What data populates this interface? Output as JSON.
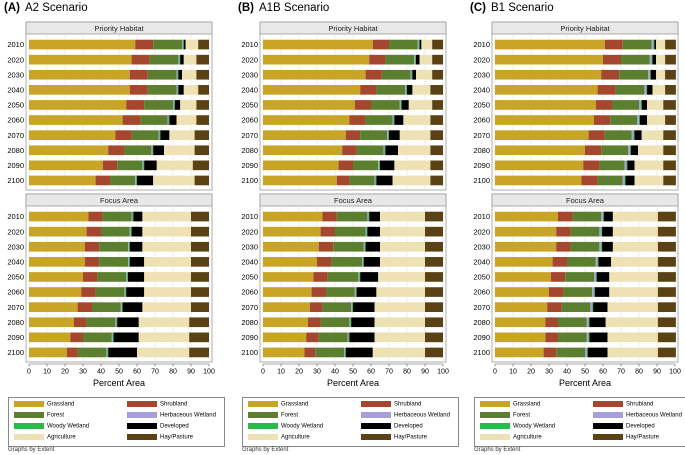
{
  "panels": [
    {
      "label": "(A)",
      "name": "A2 Scenario"
    },
    {
      "label": "(B)",
      "name": "A1B Scenario"
    },
    {
      "label": "(C)",
      "name": "B1 Scenario"
    }
  ],
  "subplots": [
    "Priority Habitat",
    "Focus Area"
  ],
  "xlabel": "Percent Area",
  "footnote": "Graphs by Extent",
  "colors": {
    "Grassland": "#c8a527",
    "Shrubland": "#a4472e",
    "Forest": "#5b7f2f",
    "Herbaceous Wetland": "#a99fd8",
    "Woody Wetland": "#2eb84a",
    "Developed": "#000000",
    "Agriculture": "#eee1b4",
    "Hay/Pasture": "#5a4214"
  },
  "legend": [
    {
      "key": "Grassland",
      "label": "Grassland"
    },
    {
      "key": "Shrubland",
      "label": "Shrubland"
    },
    {
      "key": "Forest",
      "label": "Forest"
    },
    {
      "key": "Herbaceous Wetland",
      "label": "Herbaceous Wetland"
    },
    {
      "key": "Woody Wetland",
      "label": "Woody Wetland"
    },
    {
      "key": "Developed",
      "label": "Developed"
    },
    {
      "key": "Agriculture",
      "label": "Agriculture"
    },
    {
      "key": "Hay/Pasture",
      "label": "Hay/Pasture"
    }
  ],
  "chart_data": [
    {
      "type": "bar",
      "orientation": "horizontal",
      "stacked": true,
      "title": "A2 Scenario",
      "xlabel": "Percent Area",
      "xlim": [
        0,
        100
      ],
      "xticks": [
        0,
        10,
        20,
        30,
        40,
        50,
        60,
        70,
        80,
        90,
        100
      ],
      "categories": [
        "2010",
        "2020",
        "2030",
        "2040",
        "2050",
        "2060",
        "2070",
        "2080",
        "2090",
        "2100"
      ],
      "series_order": [
        "Grassland",
        "Shrubland",
        "Forest",
        "Herbaceous Wetland",
        "Woody Wetland",
        "Developed",
        "Agriculture",
        "Hay/Pasture"
      ],
      "subplots": [
        {
          "title": "Priority Habitat",
          "series": [
            {
              "name": "Grassland",
              "values": [
                59,
                57,
                56,
                56,
                54,
                52,
                48,
                44,
                41,
                37
              ]
            },
            {
              "name": "Shrubland",
              "values": [
                10,
                10,
                10,
                10,
                10,
                10,
                9,
                9,
                8,
                8
              ]
            },
            {
              "name": "Forest",
              "values": [
                16,
                16,
                16,
                16,
                16,
                15,
                15,
                15,
                14,
                14
              ]
            },
            {
              "name": "Herbaceous Wetland",
              "values": [
                0.5,
                0.5,
                0.5,
                0.5,
                0.5,
                0.5,
                0.5,
                0.5,
                0.5,
                0.5
              ]
            },
            {
              "name": "Woody Wetland",
              "values": [
                0.5,
                0.5,
                0.5,
                0.5,
                0.5,
                0.5,
                0.5,
                0.5,
                0.5,
                0.5
              ]
            },
            {
              "name": "Developed",
              "values": [
                1,
                2,
                2,
                3,
                3,
                4,
                5,
                6,
                7,
                9
              ]
            },
            {
              "name": "Agriculture",
              "values": [
                7,
                7,
                8,
                8,
                9,
                11,
                14,
                17,
                20,
                23
              ]
            },
            {
              "name": "Hay/Pasture",
              "values": [
                6,
                7,
                7,
                6,
                7,
                7,
                8,
                8,
                9,
                8
              ]
            }
          ]
        },
        {
          "title": "Focus Area",
          "series": [
            {
              "name": "Grassland",
              "values": [
                33,
                32,
                31,
                31,
                30,
                29,
                27,
                25,
                23,
                21
              ]
            },
            {
              "name": "Shrubland",
              "values": [
                8,
                8,
                8,
                8,
                8,
                8,
                8,
                7,
                7,
                6
              ]
            },
            {
              "name": "Forest",
              "values": [
                16,
                16,
                16,
                16,
                16,
                16,
                16,
                16,
                16,
                16
              ]
            },
            {
              "name": "Herbaceous Wetland",
              "values": [
                0.5,
                0.5,
                0.5,
                0.5,
                0.5,
                0.5,
                0.5,
                0.5,
                0.5,
                0.5
              ]
            },
            {
              "name": "Woody Wetland",
              "values": [
                0.5,
                0.5,
                0.5,
                0.5,
                0.5,
                0.5,
                0.5,
                0.5,
                0.5,
                0.5
              ]
            },
            {
              "name": "Developed",
              "values": [
                5,
                6,
                7,
                8,
                9,
                10,
                11,
                12,
                14,
                16
              ]
            },
            {
              "name": "Agriculture",
              "values": [
                27,
                27,
                27,
                26,
                26,
                26,
                27,
                28,
                28,
                29
              ]
            },
            {
              "name": "Hay/Pasture",
              "values": [
                10,
                10,
                10,
                10,
                10,
                10,
                10,
                11,
                11,
                11
              ]
            }
          ]
        }
      ]
    },
    {
      "type": "bar",
      "orientation": "horizontal",
      "stacked": true,
      "title": "A1B Scenario",
      "xlabel": "Percent Area",
      "xlim": [
        0,
        100
      ],
      "xticks": [
        0,
        10,
        20,
        30,
        40,
        50,
        60,
        70,
        80,
        90,
        100
      ],
      "categories": [
        "2010",
        "2020",
        "2030",
        "2040",
        "2050",
        "2060",
        "2070",
        "2080",
        "2090",
        "2100"
      ],
      "series_order": [
        "Grassland",
        "Shrubland",
        "Forest",
        "Herbaceous Wetland",
        "Woody Wetland",
        "Developed",
        "Agriculture",
        "Hay/Pasture"
      ],
      "subplots": [
        {
          "title": "Priority Habitat",
          "series": [
            {
              "name": "Grassland",
              "values": [
                61,
                59,
                57,
                54,
                51,
                48,
                46,
                44,
                42,
                41
              ]
            },
            {
              "name": "Shrubland",
              "values": [
                9,
                9,
                9,
                9,
                9,
                9,
                8,
                8,
                8,
                7
              ]
            },
            {
              "name": "Forest",
              "values": [
                16,
                16,
                16,
                16,
                16,
                15,
                15,
                15,
                14,
                14
              ]
            },
            {
              "name": "Herbaceous Wetland",
              "values": [
                0.5,
                0.5,
                0.5,
                0.5,
                0.5,
                0.5,
                0.5,
                0.5,
                0.5,
                0.5
              ]
            },
            {
              "name": "Woody Wetland",
              "values": [
                0.5,
                0.5,
                0.5,
                0.5,
                0.5,
                0.5,
                0.5,
                0.5,
                0.5,
                0.5
              ]
            },
            {
              "name": "Developed",
              "values": [
                1,
                2,
                2,
                3,
                4,
                5,
                6,
                7,
                8,
                9
              ]
            },
            {
              "name": "Agriculture",
              "values": [
                6,
                7,
                9,
                10,
                13,
                15,
                17,
                18,
                20,
                21
              ]
            },
            {
              "name": "Hay/Pasture",
              "values": [
                6,
                6,
                6,
                7,
                6,
                7,
                7,
                7,
                7,
                7
              ]
            }
          ]
        },
        {
          "title": "Focus Area",
          "series": [
            {
              "name": "Grassland",
              "values": [
                33,
                32,
                31,
                30,
                28,
                27,
                26,
                25,
                24,
                23
              ]
            },
            {
              "name": "Shrubland",
              "values": [
                8,
                8,
                8,
                8,
                8,
                8,
                7,
                7,
                7,
                6
              ]
            },
            {
              "name": "Forest",
              "values": [
                17,
                17,
                17,
                17,
                17,
                16,
                16,
                16,
                16,
                16
              ]
            },
            {
              "name": "Herbaceous Wetland",
              "values": [
                0.5,
                0.5,
                0.5,
                0.5,
                0.5,
                0.5,
                0.5,
                0.5,
                0.5,
                0.5
              ]
            },
            {
              "name": "Woody Wetland",
              "values": [
                0.5,
                0.5,
                0.5,
                0.5,
                0.5,
                0.5,
                0.5,
                0.5,
                0.5,
                0.5
              ]
            },
            {
              "name": "Developed",
              "values": [
                6,
                7,
                8,
                9,
                10,
                11,
                12,
                13,
                14,
                15
              ]
            },
            {
              "name": "Agriculture",
              "values": [
                25,
                25,
                25,
                25,
                26,
                27,
                28,
                28,
                28,
                29
              ]
            },
            {
              "name": "Hay/Pasture",
              "values": [
                10,
                10,
                10,
                10,
                10,
                10,
                10,
                10,
                10,
                10
              ]
            }
          ]
        }
      ]
    },
    {
      "type": "bar",
      "orientation": "horizontal",
      "stacked": true,
      "title": "B1 Scenario",
      "xlabel": "Percent Area",
      "xlim": [
        0,
        100
      ],
      "xticks": [
        0,
        10,
        20,
        30,
        40,
        50,
        60,
        70,
        80,
        90,
        100
      ],
      "categories": [
        "2010",
        "2020",
        "2030",
        "2040",
        "2050",
        "2060",
        "2070",
        "2080",
        "2090",
        "2100"
      ],
      "series_order": [
        "Grassland",
        "Shrubland",
        "Forest",
        "Herbaceous Wetland",
        "Woody Wetland",
        "Developed",
        "Agriculture",
        "Hay/Pasture"
      ],
      "subplots": [
        {
          "title": "Priority Habitat",
          "series": [
            {
              "name": "Grassland",
              "values": [
                61,
                60,
                59,
                57,
                56,
                55,
                52,
                50,
                49,
                48
              ]
            },
            {
              "name": "Shrubland",
              "values": [
                10,
                10,
                10,
                10,
                9,
                9,
                9,
                9,
                9,
                9
              ]
            },
            {
              "name": "Forest",
              "values": [
                16,
                16,
                16,
                16,
                15,
                15,
                15,
                15,
                14,
                14
              ]
            },
            {
              "name": "Herbaceous Wetland",
              "values": [
                1,
                1,
                1,
                1,
                1,
                1,
                1,
                1,
                1,
                1
              ]
            },
            {
              "name": "Woody Wetland",
              "values": [
                0.5,
                0.5,
                0.5,
                0.5,
                0.5,
                0.5,
                0.5,
                0.5,
                0.5,
                0.5
              ]
            },
            {
              "name": "Developed",
              "values": [
                1,
                2,
                3,
                3,
                3,
                4,
                4,
                4,
                4,
                5
              ]
            },
            {
              "name": "Agriculture",
              "values": [
                5,
                5,
                5,
                7,
                9,
                10,
                12,
                14,
                16,
                16
              ]
            },
            {
              "name": "Hay/Pasture",
              "values": [
                6,
                6,
                6,
                6,
                7,
                6,
                7,
                7,
                7,
                7
              ]
            }
          ]
        },
        {
          "title": "Focus Area",
          "series": [
            {
              "name": "Grassland",
              "values": [
                35,
                34,
                34,
                32,
                31,
                30,
                29,
                28,
                28,
                27
              ]
            },
            {
              "name": "Shrubland",
              "values": [
                8,
                8,
                8,
                8,
                8,
                8,
                8,
                7,
                7,
                7
              ]
            },
            {
              "name": "Forest",
              "values": [
                16,
                16,
                16,
                16,
                16,
                16,
                16,
                16,
                16,
                16
              ]
            },
            {
              "name": "Herbaceous Wetland",
              "values": [
                1,
                1,
                1,
                1,
                1,
                1,
                1,
                1,
                1,
                1
              ]
            },
            {
              "name": "Woody Wetland",
              "values": [
                0.5,
                0.5,
                0.5,
                0.5,
                0.5,
                0.5,
                0.5,
                0.5,
                0.5,
                0.5
              ]
            },
            {
              "name": "Developed",
              "values": [
                5,
                6,
                6,
                7,
                7,
                8,
                8,
                9,
                10,
                11
              ]
            },
            {
              "name": "Agriculture",
              "values": [
                25,
                25,
                25,
                26,
                27,
                27,
                28,
                29,
                28,
                28
              ]
            },
            {
              "name": "Hay/Pasture",
              "values": [
                10,
                10,
                10,
                10,
                10,
                10,
                10,
                10,
                10,
                10
              ]
            }
          ]
        }
      ]
    }
  ]
}
